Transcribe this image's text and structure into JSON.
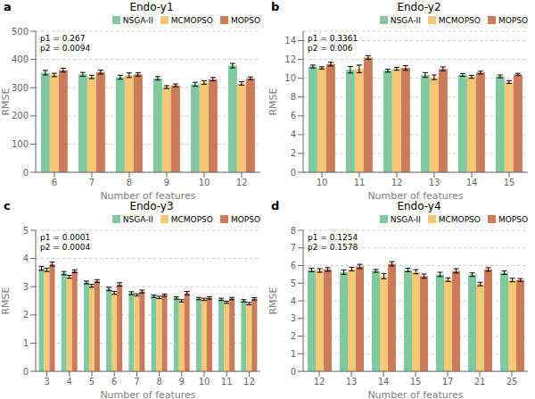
{
  "chart_data": [
    {
      "type": "bar",
      "panel_label": "a",
      "title": "Endo-y1",
      "annotations": [
        "p1 = 0.267",
        "p2 = 0.0094"
      ],
      "xlabel": "Number of features",
      "ylabel": "RMSE",
      "categories": [
        "6",
        "7",
        "8",
        "9",
        "10",
        "12"
      ],
      "series": [
        {
          "name": "NSGA-II",
          "color": "#82C9A0",
          "values": [
            353,
            347,
            337,
            333,
            312,
            378
          ],
          "errors": [
            8,
            7,
            7,
            6,
            7,
            8
          ]
        },
        {
          "name": "MCMOPSO",
          "color": "#F5C777",
          "values": [
            345,
            338,
            344,
            302,
            318,
            315
          ],
          "errors": [
            6,
            6,
            8,
            5,
            6,
            6
          ]
        },
        {
          "name": "MOPSO",
          "color": "#C97B5A",
          "values": [
            362,
            355,
            347,
            308,
            330,
            333
          ],
          "errors": [
            7,
            7,
            6,
            5,
            6,
            5
          ]
        }
      ],
      "ylim": [
        0,
        500
      ],
      "yticks": [
        0,
        100,
        200,
        300,
        400,
        500
      ],
      "grid": true,
      "legend": "upper right"
    },
    {
      "type": "bar",
      "panel_label": "b",
      "title": "Endo-y2",
      "annotations": [
        "p1 = 0.3361",
        "p2 = 0.006"
      ],
      "xlabel": "Number of features",
      "ylabel": "RMSE",
      "categories": [
        "10",
        "11",
        "12",
        "13",
        "14",
        "15"
      ],
      "series": [
        {
          "name": "NSGA-II",
          "color": "#82C9A0",
          "values": [
            11.25,
            10.9,
            10.8,
            10.35,
            10.35,
            10.2
          ],
          "errors": [
            0.15,
            0.35,
            0.15,
            0.25,
            0.15,
            0.15
          ]
        },
        {
          "name": "MCMOPSO",
          "color": "#F5C777",
          "values": [
            11.1,
            11.0,
            11.0,
            10.1,
            10.15,
            9.6
          ],
          "errors": [
            0.12,
            0.4,
            0.15,
            0.25,
            0.15,
            0.15
          ]
        },
        {
          "name": "MOPSO",
          "color": "#C97B5A",
          "values": [
            11.5,
            12.2,
            11.1,
            11.0,
            10.6,
            10.4
          ],
          "errors": [
            0.2,
            0.2,
            0.25,
            0.2,
            0.15,
            0.12
          ]
        }
      ],
      "ylim": [
        0,
        15
      ],
      "yticks": [
        0,
        2,
        4,
        6,
        8,
        10,
        12,
        14
      ],
      "grid": true,
      "legend": "upper right"
    },
    {
      "type": "bar",
      "panel_label": "c",
      "title": "Endo-y3",
      "annotations": [
        "p1 = 0.0001",
        "p2 = 0.0004"
      ],
      "xlabel": "Number of features",
      "ylabel": "RMSE",
      "categories": [
        "3",
        "4",
        "5",
        "6",
        "7",
        "8",
        "9",
        "10",
        "11",
        "12"
      ],
      "series": [
        {
          "name": "NSGA-II",
          "color": "#82C9A0",
          "values": [
            3.65,
            3.48,
            3.15,
            2.92,
            2.77,
            2.66,
            2.6,
            2.58,
            2.55,
            2.5
          ],
          "errors": [
            0.07,
            0.06,
            0.05,
            0.06,
            0.05,
            0.04,
            0.04,
            0.04,
            0.04,
            0.04
          ]
        },
        {
          "name": "MCMOPSO",
          "color": "#F5C777",
          "values": [
            3.6,
            3.35,
            3.03,
            2.78,
            2.71,
            2.62,
            2.5,
            2.55,
            2.45,
            2.4
          ],
          "errors": [
            0.06,
            0.05,
            0.05,
            0.05,
            0.04,
            0.04,
            0.04,
            0.04,
            0.04,
            0.04
          ]
        },
        {
          "name": "MOPSO",
          "color": "#C97B5A",
          "values": [
            3.8,
            3.55,
            3.2,
            3.08,
            2.83,
            2.7,
            2.77,
            2.6,
            2.58,
            2.57
          ],
          "errors": [
            0.07,
            0.05,
            0.05,
            0.06,
            0.05,
            0.04,
            0.06,
            0.04,
            0.04,
            0.04
          ]
        }
      ],
      "ylim": [
        0,
        5
      ],
      "yticks": [
        0,
        1,
        2,
        3,
        4,
        5
      ],
      "grid": true,
      "legend": "upper right"
    },
    {
      "type": "bar",
      "panel_label": "d",
      "title": "Endo-y4",
      "annotations": [
        "p1 = 0.1254",
        "p2 = 0.1578"
      ],
      "xlabel": "Number of features",
      "ylabel": "RMSE",
      "categories": [
        "12",
        "13",
        "14",
        "15",
        "17",
        "21",
        "25"
      ],
      "series": [
        {
          "name": "NSGA-II",
          "color": "#82C9A0",
          "values": [
            5.75,
            5.62,
            5.7,
            5.75,
            5.5,
            5.48,
            5.6
          ],
          "errors": [
            0.1,
            0.12,
            0.08,
            0.1,
            0.12,
            0.1,
            0.1
          ]
        },
        {
          "name": "MCMOPSO",
          "color": "#F5C777",
          "values": [
            5.72,
            5.8,
            5.4,
            5.65,
            5.2,
            4.95,
            5.18
          ],
          "errors": [
            0.1,
            0.1,
            0.15,
            0.12,
            0.1,
            0.1,
            0.1
          ]
        },
        {
          "name": "MOPSO",
          "color": "#C97B5A",
          "values": [
            5.78,
            5.95,
            6.1,
            5.4,
            5.7,
            5.78,
            5.18
          ],
          "errors": [
            0.1,
            0.12,
            0.12,
            0.12,
            0.12,
            0.1,
            0.08
          ]
        }
      ],
      "ylim": [
        0,
        8
      ],
      "yticks": [
        0,
        1,
        2,
        3,
        4,
        5,
        6,
        7,
        8
      ],
      "grid": true,
      "legend": "upper right"
    }
  ]
}
